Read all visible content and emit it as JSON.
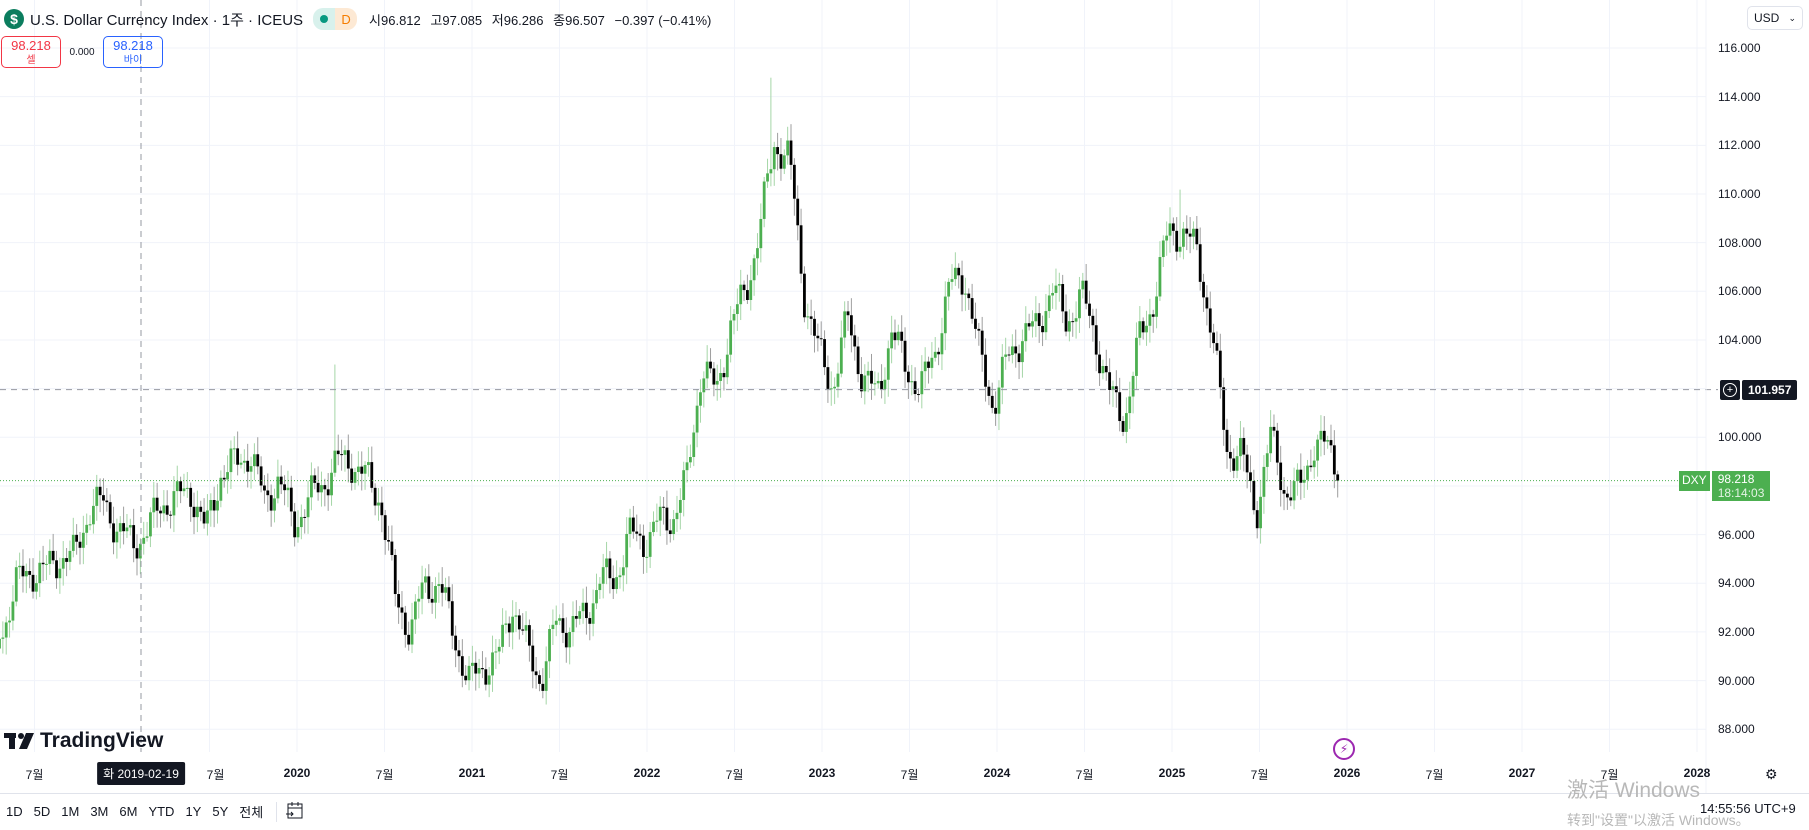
{
  "header": {
    "symbol_icon": "dollar-sign-icon",
    "title": "U.S. Dollar Currency Index · 1주 · ICEUS",
    "market_status": "D",
    "ohlc": {
      "open": "시96.812",
      "high": "고97.085",
      "low": "저96.286",
      "close": "종96.507",
      "change": "−0.397 (−0.41%)"
    }
  },
  "trade": {
    "sell_price": "98.218",
    "sell_label": "셀",
    "spread": "0.000",
    "buy_price": "98.218",
    "buy_label": "바이"
  },
  "currency": "USD",
  "crosshair": {
    "price": "101.957",
    "date": "화 2019-02-19"
  },
  "last_price": {
    "symbol": "DXY",
    "price": "98.218",
    "countdown": "18:14:03"
  },
  "branding": "TradingView",
  "range_buttons": [
    "1D",
    "5D",
    "1M",
    "3M",
    "6M",
    "YTD",
    "1Y",
    "5Y",
    "전체"
  ],
  "clock": "14:55:56 UTC+9",
  "watermark": {
    "line1": "激活 Windows",
    "line2": "转到\"设置\"以激活 Windows。"
  },
  "colors": {
    "up": "#4caf50",
    "down": "#000000",
    "crosshair": "#9598a1",
    "last_line": "#4caf50"
  },
  "chart_data": {
    "type": "candlestick",
    "interval": "1 week",
    "ylim": [
      87,
      117
    ],
    "grid": true,
    "price_ticks": [
      "116.000",
      "114.000",
      "112.000",
      "110.000",
      "108.000",
      "106.000",
      "104.000",
      "102.000",
      "100.000",
      "98.000",
      "96.000",
      "94.000",
      "92.000",
      "90.000",
      "88.000"
    ],
    "shown_price_ticks": [
      "116.000",
      "114.000",
      "112.000",
      "110.000",
      "108.000",
      "106.000",
      "104.000",
      "100.000",
      "96.000",
      "94.000",
      "92.000",
      "90.000",
      "88.000"
    ],
    "time_ticks": [
      {
        "label": "7월",
        "date": 2018.5
      },
      {
        "label": "7월",
        "date": 2019.5
      },
      {
        "label": "2020",
        "date": 2020
      },
      {
        "label": "7월",
        "date": 2020.5
      },
      {
        "label": "2021",
        "date": 2021
      },
      {
        "label": "7월",
        "date": 2021.5
      },
      {
        "label": "2022",
        "date": 2022
      },
      {
        "label": "7월",
        "date": 2022.5
      },
      {
        "label": "2023",
        "date": 2023
      },
      {
        "label": "7월",
        "date": 2023.5
      },
      {
        "label": "2024",
        "date": 2024
      },
      {
        "label": "7월",
        "date": 2024.5
      },
      {
        "label": "2025",
        "date": 2025
      },
      {
        "label": "7월",
        "date": 2025.5
      },
      {
        "label": "2026",
        "date": 2026
      },
      {
        "label": "7월",
        "date": 2026.5
      },
      {
        "label": "2027",
        "date": 2027
      },
      {
        "label": "7월",
        "date": 2027.5
      },
      {
        "label": "2028",
        "date": 2028
      }
    ],
    "monthly_close_approx": [
      [
        "2018-04",
        92.0
      ],
      [
        "2018-05",
        94.0
      ],
      [
        "2018-06",
        94.5
      ],
      [
        "2018-07",
        94.5
      ],
      [
        "2018-08",
        95.1
      ],
      [
        "2018-09",
        95.1
      ],
      [
        "2018-10",
        97.1
      ],
      [
        "2018-11",
        97.3
      ],
      [
        "2018-12",
        96.2
      ],
      [
        "2019-01",
        95.6
      ],
      [
        "2019-02",
        96.2
      ],
      [
        "2019-03",
        97.3
      ],
      [
        "2019-04",
        97.5
      ],
      [
        "2019-05",
        97.8
      ],
      [
        "2019-06",
        96.1
      ],
      [
        "2019-07",
        98.5
      ],
      [
        "2019-08",
        98.9
      ],
      [
        "2019-09",
        99.4
      ],
      [
        "2019-10",
        97.4
      ],
      [
        "2019-11",
        98.3
      ],
      [
        "2019-12",
        96.4
      ],
      [
        "2020-01",
        97.4
      ],
      [
        "2020-02",
        98.1
      ],
      [
        "2020-03",
        99.0
      ],
      [
        "2020-04",
        99.0
      ],
      [
        "2020-05",
        98.3
      ],
      [
        "2020-06",
        97.4
      ],
      [
        "2020-07",
        93.3
      ],
      [
        "2020-08",
        92.1
      ],
      [
        "2020-09",
        93.9
      ],
      [
        "2020-10",
        94.0
      ],
      [
        "2020-11",
        91.9
      ],
      [
        "2020-12",
        89.9
      ],
      [
        "2021-01",
        90.6
      ],
      [
        "2021-02",
        90.9
      ],
      [
        "2021-03",
        93.2
      ],
      [
        "2021-04",
        91.3
      ],
      [
        "2021-05",
        90.0
      ],
      [
        "2021-06",
        92.4
      ],
      [
        "2021-07",
        92.2
      ],
      [
        "2021-08",
        92.6
      ],
      [
        "2021-09",
        94.2
      ],
      [
        "2021-10",
        94.1
      ],
      [
        "2021-11",
        96.0
      ],
      [
        "2021-12",
        95.7
      ],
      [
        "2022-01",
        96.5
      ],
      [
        "2022-02",
        96.7
      ],
      [
        "2022-03",
        98.3
      ],
      [
        "2022-04",
        103.0
      ],
      [
        "2022-05",
        101.8
      ],
      [
        "2022-06",
        104.7
      ],
      [
        "2022-07",
        105.9
      ],
      [
        "2022-08",
        108.7
      ],
      [
        "2022-09",
        112.1
      ],
      [
        "2022-10",
        111.5
      ],
      [
        "2022-11",
        105.9
      ],
      [
        "2022-12",
        103.5
      ],
      [
        "2023-01",
        102.1
      ],
      [
        "2023-02",
        104.9
      ],
      [
        "2023-03",
        102.5
      ],
      [
        "2023-04",
        101.7
      ],
      [
        "2023-05",
        104.3
      ],
      [
        "2023-06",
        102.9
      ],
      [
        "2023-07",
        101.9
      ],
      [
        "2023-08",
        103.6
      ],
      [
        "2023-09",
        106.2
      ],
      [
        "2023-10",
        106.7
      ],
      [
        "2023-11",
        103.5
      ],
      [
        "2023-12",
        101.3
      ],
      [
        "2024-01",
        103.3
      ],
      [
        "2024-02",
        104.2
      ],
      [
        "2024-03",
        104.5
      ],
      [
        "2024-04",
        106.2
      ],
      [
        "2024-05",
        104.7
      ],
      [
        "2024-06",
        105.9
      ],
      [
        "2024-07",
        104.1
      ],
      [
        "2024-08",
        101.7
      ],
      [
        "2024-09",
        100.8
      ],
      [
        "2024-10",
        104.0
      ],
      [
        "2024-11",
        105.7
      ],
      [
        "2024-12",
        108.5
      ],
      [
        "2025-01",
        108.4
      ],
      [
        "2025-02",
        107.6
      ],
      [
        "2025-03",
        104.2
      ],
      [
        "2025-04",
        99.5
      ],
      [
        "2025-05",
        99.3
      ],
      [
        "2025-06",
        96.9
      ],
      [
        "2025-07",
        100.0
      ],
      [
        "2025-08",
        97.8
      ],
      [
        "2025-09",
        97.8
      ],
      [
        "2025-10",
        99.8
      ],
      [
        "2025-11",
        99.5
      ],
      [
        "2025-12",
        98.2
      ]
    ],
    "notable_highs": [
      [
        "2020-03",
        102.99
      ],
      [
        "2022-09",
        114.78
      ],
      [
        "2025-01",
        110.18
      ]
    ]
  }
}
